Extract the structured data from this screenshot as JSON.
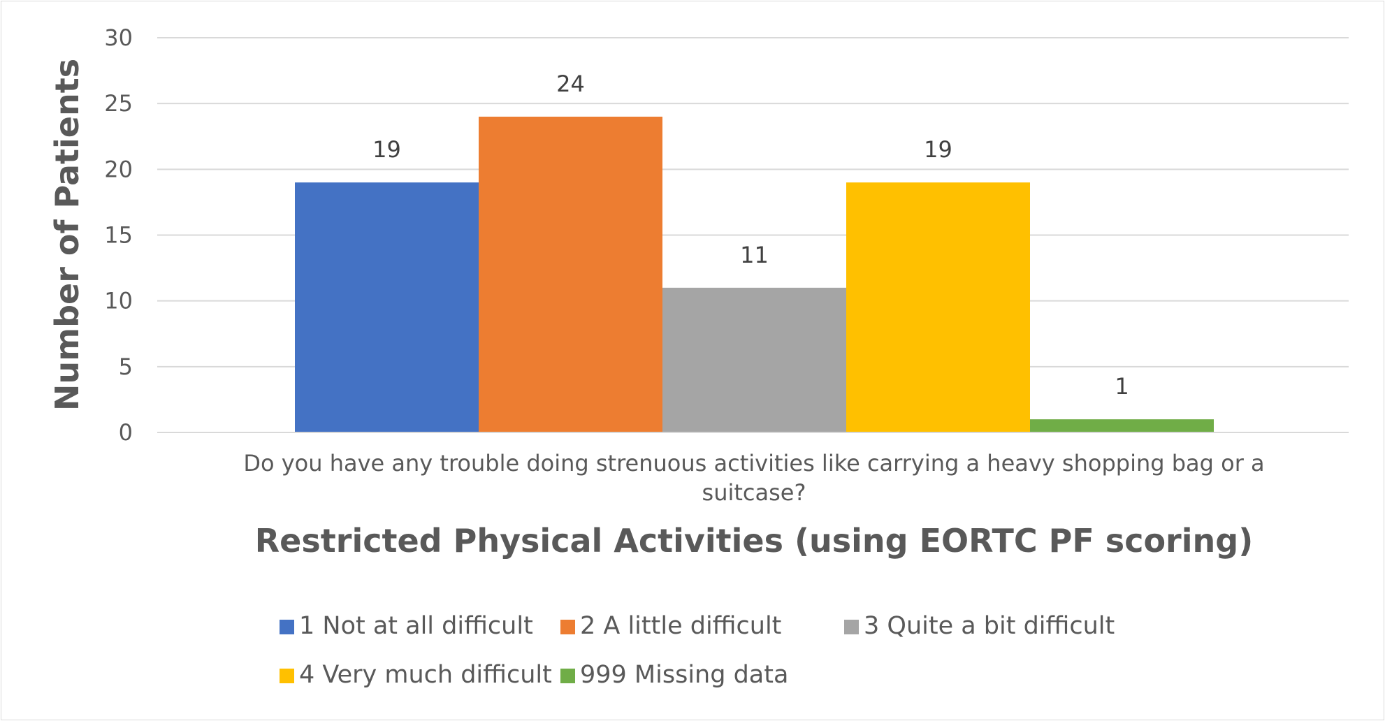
{
  "chart_data": {
    "type": "bar",
    "categories": [
      "Do you have any trouble doing strenuous activities like carrying a heavy shopping bag or a suitcase?"
    ],
    "category_label_lines": [
      "Do you have any trouble doing strenuous activities like carrying a heavy shopping bag or a",
      "suitcase?"
    ],
    "series": [
      {
        "name": "1 Not at all difficult",
        "values": [
          19
        ],
        "color": "#4472C4"
      },
      {
        "name": "2 A little difficult",
        "values": [
          24
        ],
        "color": "#ED7D31"
      },
      {
        "name": "3 Quite a bit difficult",
        "values": [
          11
        ],
        "color": "#A5A5A5"
      },
      {
        "name": "4 Very much difficult",
        "values": [
          19
        ],
        "color": "#FFC000"
      },
      {
        "name": "999 Missing data",
        "values": [
          1
        ],
        "color": "#70AD47"
      }
    ],
    "xlabel": "Restricted Physical Activities (using EORTC PF scoring)",
    "ylabel": "Number of Patients",
    "ylim": [
      0,
      30
    ],
    "yticks": [
      0,
      5,
      10,
      15,
      20,
      25,
      30
    ],
    "grid": true,
    "legend_position": "bottom"
  }
}
